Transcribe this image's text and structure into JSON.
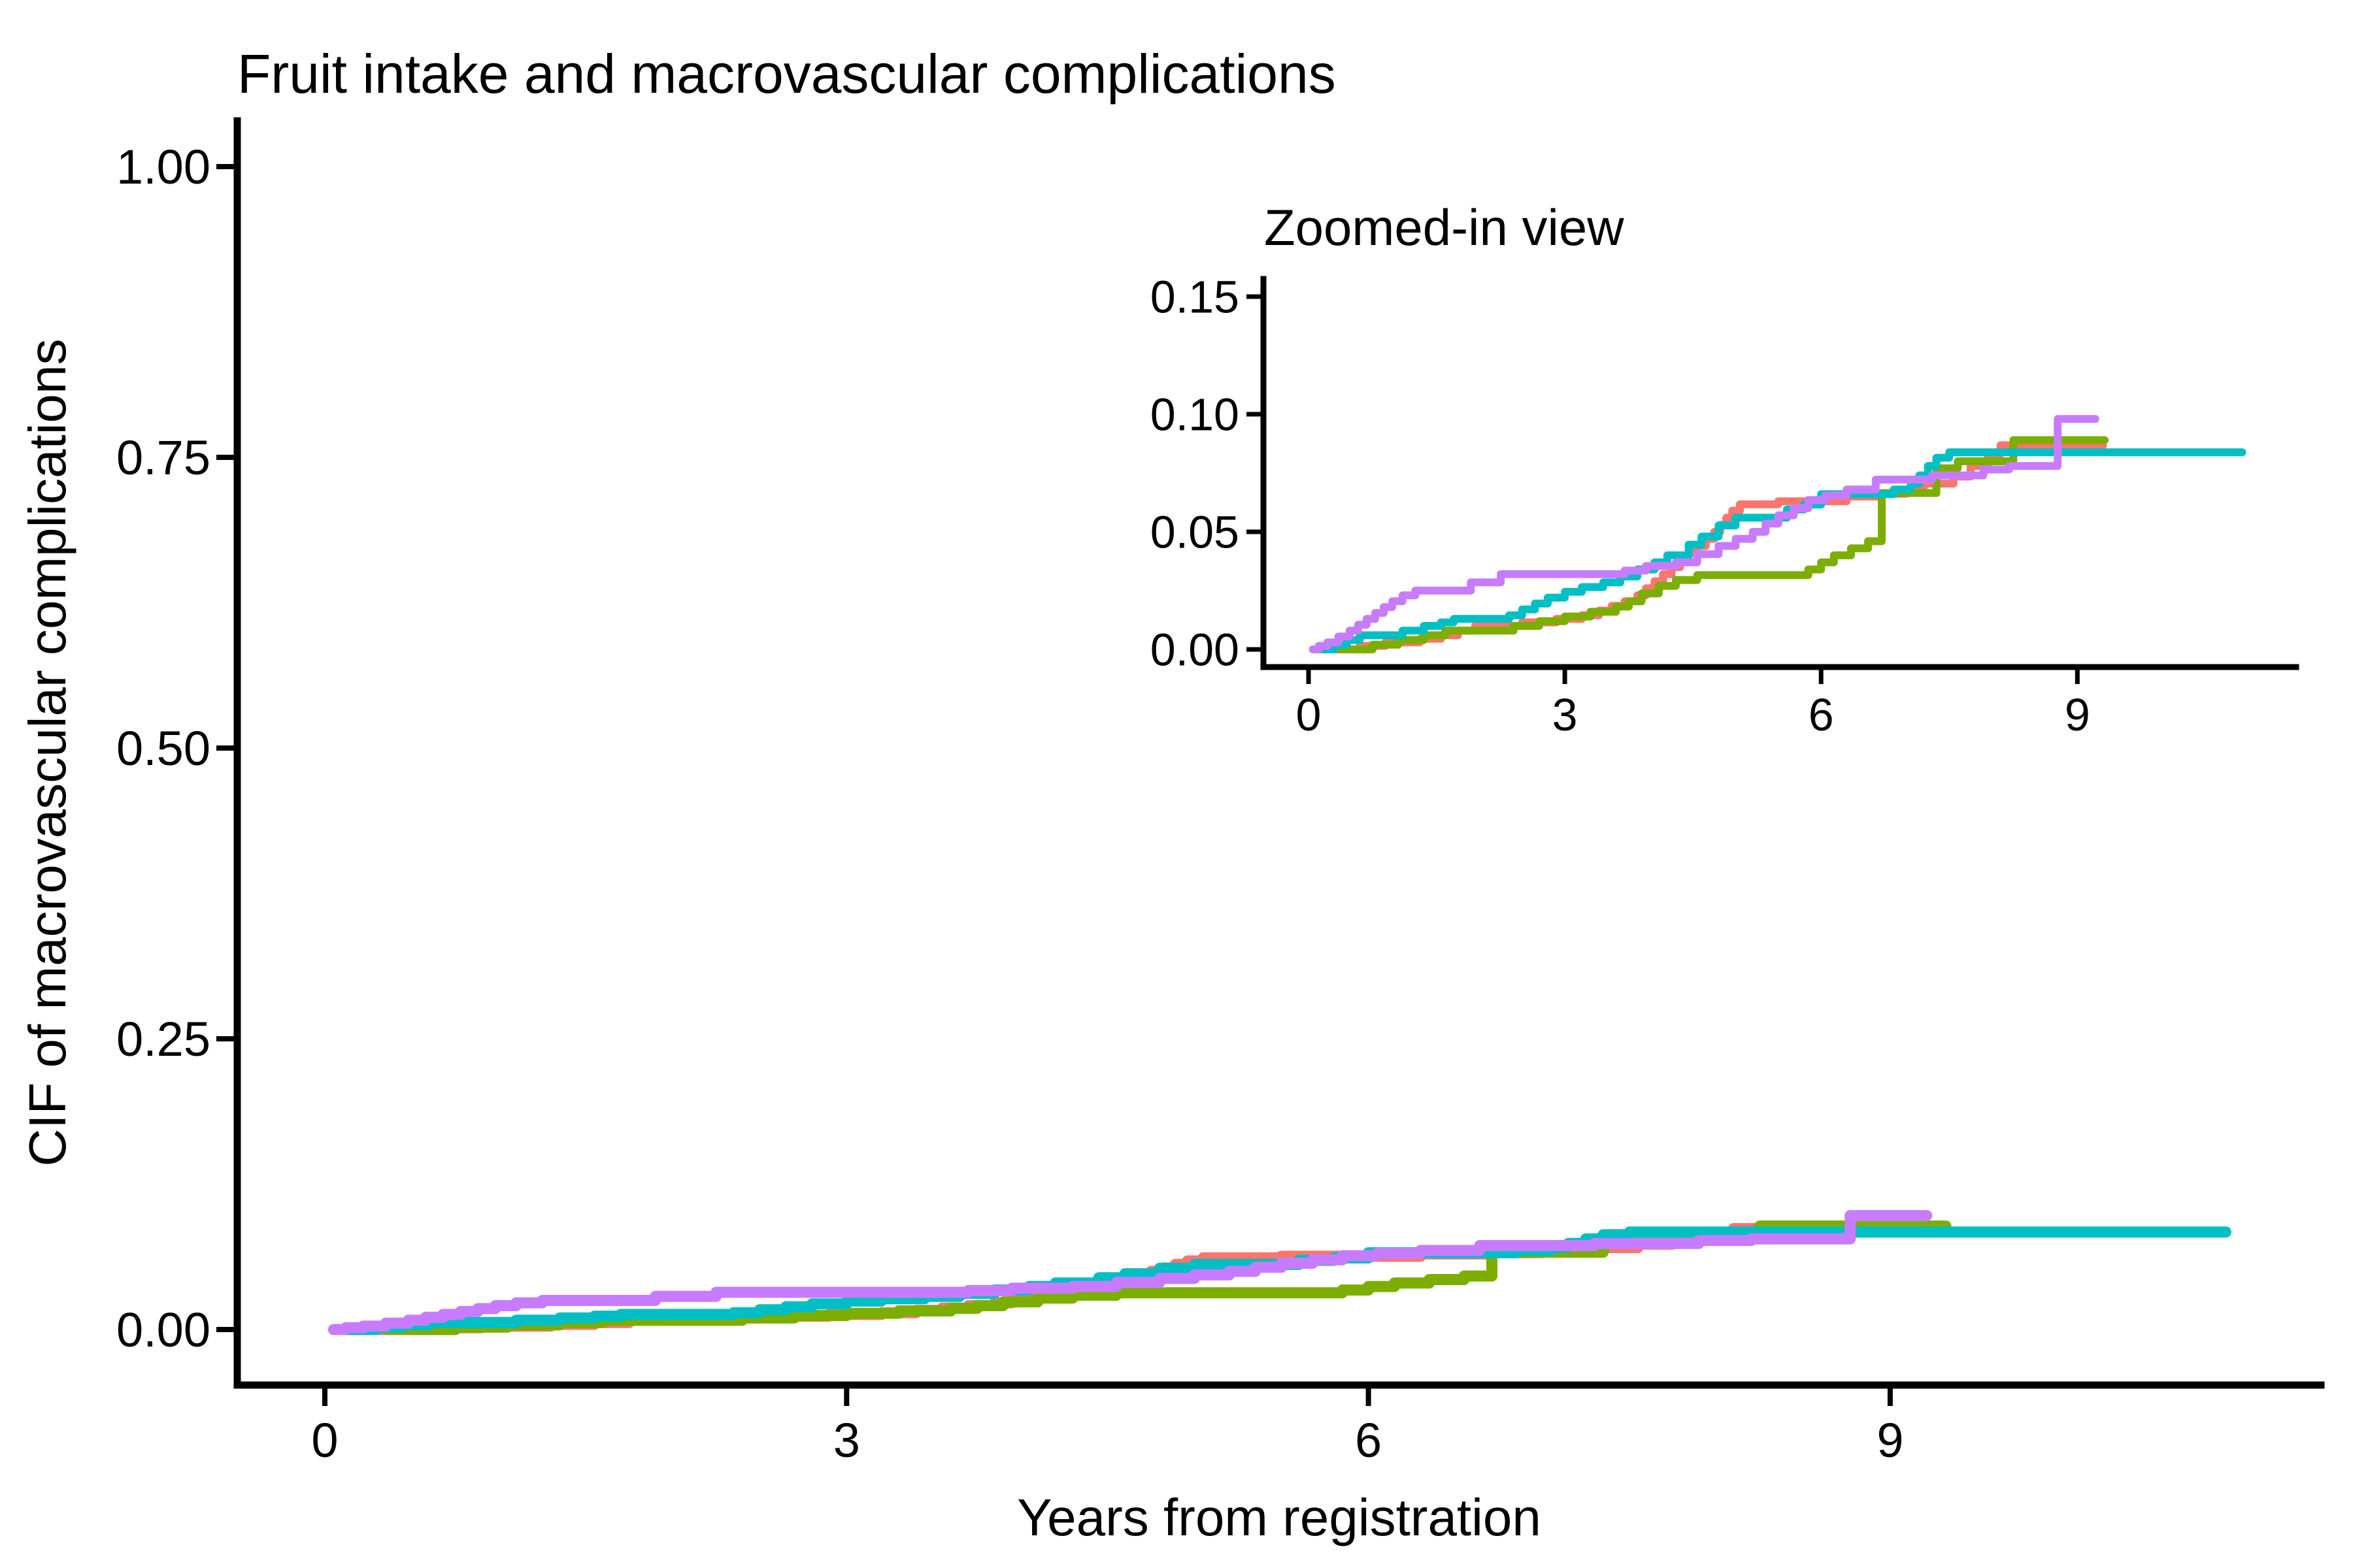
{
  "page": {
    "background_color": "#FFFFFF",
    "text_color": "#000000",
    "axis_color": "#000000"
  },
  "chart_data": [
    {
      "id": "main",
      "type": "line",
      "subtype": "step-cumulative-incidence",
      "title": "Fruit intake and macrovascular complications",
      "xlabel": "Years from registration",
      "ylabel": "CIF of macrovascular complications",
      "xlim": [
        0,
        11
      ],
      "ylim": [
        0,
        1
      ],
      "grid": false,
      "legend": "none",
      "xticks": [
        0,
        3,
        6,
        9
      ],
      "xtick_labels": [
        "0",
        "3",
        "6",
        "9"
      ],
      "yticks": [
        0,
        0.25,
        0.5,
        0.75,
        1
      ],
      "ytick_labels": [
        "0.00",
        "0.25",
        "0.50",
        "0.75",
        "1.00"
      ],
      "series": [
        {
          "name": "salmon",
          "color": "#F8766D",
          "points": [
            [
              0.25,
              0
            ],
            [
              0.6,
              0.0015
            ],
            [
              0.9,
              0.003
            ],
            [
              1.3,
              0.0045
            ],
            [
              1.55,
              0.006
            ],
            [
              1.75,
              0.008
            ],
            [
              1.95,
              0.01
            ],
            [
              2.5,
              0.0115
            ],
            [
              2.9,
              0.013
            ],
            [
              3.2,
              0.0145
            ],
            [
              3.4,
              0.0165
            ],
            [
              3.55,
              0.0185
            ],
            [
              3.7,
              0.0205
            ],
            [
              3.85,
              0.023
            ],
            [
              3.95,
              0.026
            ],
            [
              4.05,
              0.029
            ],
            [
              4.15,
              0.032
            ],
            [
              4.25,
              0.035
            ],
            [
              4.35,
              0.038
            ],
            [
              4.45,
              0.041
            ],
            [
              4.55,
              0.044
            ],
            [
              4.65,
              0.047
            ],
            [
              4.75,
              0.05
            ],
            [
              4.82,
              0.053
            ],
            [
              4.89,
              0.056
            ],
            [
              4.96,
              0.059
            ],
            [
              5.05,
              0.0617
            ],
            [
              5.5,
              0.063
            ],
            [
              6.3,
              0.065
            ],
            [
              6.7,
              0.0662
            ],
            [
              7.0,
              0.0675
            ],
            [
              7.2,
              0.0705
            ],
            [
              7.55,
              0.0735
            ],
            [
              7.75,
              0.078
            ],
            [
              7.95,
              0.083
            ],
            [
              8.1,
              0.0868
            ]
          ],
          "end_x": 9.3
        },
        {
          "name": "olive",
          "color": "#7CAE00",
          "points": [
            [
              0.35,
              0
            ],
            [
              0.75,
              0.002
            ],
            [
              1.05,
              0.004
            ],
            [
              1.35,
              0.006
            ],
            [
              1.6,
              0.008
            ],
            [
              2.4,
              0.01
            ],
            [
              2.7,
              0.012
            ],
            [
              3.0,
              0.014
            ],
            [
              3.3,
              0.016
            ],
            [
              3.6,
              0.0182
            ],
            [
              3.75,
              0.0205
            ],
            [
              3.9,
              0.0238
            ],
            [
              4.1,
              0.027
            ],
            [
              4.3,
              0.0295
            ],
            [
              4.55,
              0.0316
            ],
            [
              5.85,
              0.034
            ],
            [
              6.0,
              0.037
            ],
            [
              6.15,
              0.04
            ],
            [
              6.35,
              0.043
            ],
            [
              6.55,
              0.046
            ],
            [
              6.71,
              0.0665
            ],
            [
              7.35,
              0.077
            ],
            [
              7.6,
              0.08
            ],
            [
              8.25,
              0.089
            ]
          ],
          "end_x": 9.32
        },
        {
          "name": "teal",
          "color": "#00BFC4",
          "points": [
            [
              0.1,
              0
            ],
            [
              0.3,
              0.002
            ],
            [
              0.45,
              0.004
            ],
            [
              0.6,
              0.006
            ],
            [
              1.1,
              0.008
            ],
            [
              1.35,
              0.01
            ],
            [
              1.55,
              0.0115
            ],
            [
              1.7,
              0.013
            ],
            [
              2.35,
              0.0145
            ],
            [
              2.5,
              0.017
            ],
            [
              2.65,
              0.0195
            ],
            [
              2.8,
              0.022
            ],
            [
              3.0,
              0.0245
            ],
            [
              3.2,
              0.0265
            ],
            [
              3.45,
              0.0285
            ],
            [
              3.65,
              0.031
            ],
            [
              3.85,
              0.034
            ],
            [
              4.05,
              0.037
            ],
            [
              4.2,
              0.04
            ],
            [
              4.45,
              0.0445
            ],
            [
              4.6,
              0.048
            ],
            [
              4.8,
              0.0527
            ],
            [
              5.0,
              0.056
            ],
            [
              5.6,
              0.0595
            ],
            [
              5.8,
              0.0616
            ],
            [
              6.0,
              0.066
            ],
            [
              6.85,
              0.068
            ],
            [
              7.05,
              0.0705
            ],
            [
              7.15,
              0.074
            ],
            [
              7.25,
              0.078
            ],
            [
              7.35,
              0.0815
            ],
            [
              7.5,
              0.0838
            ]
          ],
          "end_x": 10.93
        },
        {
          "name": "purple",
          "color": "#C77CFF",
          "points": [
            [
              0.05,
              0
            ],
            [
              0.12,
              0.0015
            ],
            [
              0.22,
              0.003
            ],
            [
              0.35,
              0.0055
            ],
            [
              0.48,
              0.008
            ],
            [
              0.58,
              0.0105
            ],
            [
              0.68,
              0.013
            ],
            [
              0.78,
              0.0155
            ],
            [
              0.88,
              0.018
            ],
            [
              0.98,
              0.0205
            ],
            [
              1.1,
              0.023
            ],
            [
              1.25,
              0.025
            ],
            [
              1.9,
              0.0285
            ],
            [
              2.25,
              0.032
            ],
            [
              3.7,
              0.0335
            ],
            [
              3.95,
              0.0355
            ],
            [
              4.3,
              0.037
            ],
            [
              4.55,
              0.0405
            ],
            [
              4.8,
              0.044
            ],
            [
              5.0,
              0.047
            ],
            [
              5.2,
              0.05
            ],
            [
              5.35,
              0.0535
            ],
            [
              5.5,
              0.057
            ],
            [
              5.68,
              0.06
            ],
            [
              5.85,
              0.0635
            ],
            [
              6.05,
              0.0655
            ],
            [
              6.3,
              0.068
            ],
            [
              6.64,
              0.0722
            ],
            [
              7.3,
              0.074
            ],
            [
              7.9,
              0.0765
            ],
            [
              8.2,
              0.078
            ],
            [
              8.77,
              0.098
            ]
          ],
          "end_x": 9.21
        }
      ]
    },
    {
      "id": "inset",
      "type": "line",
      "subtype": "step-cumulative-incidence",
      "title": "Zoomed-in view",
      "xlabel": "",
      "ylabel": "",
      "xlim": [
        0,
        11
      ],
      "ylim": [
        0,
        0.15
      ],
      "grid": false,
      "legend": "none",
      "xticks": [
        0,
        3,
        6,
        9
      ],
      "xtick_labels": [
        "0",
        "3",
        "6",
        "9"
      ],
      "yticks": [
        0,
        0.05,
        0.1,
        0.15
      ],
      "ytick_labels": [
        "0.00",
        "0.05",
        "0.10",
        "0.15"
      ],
      "series_source": "same series as main chart"
    }
  ]
}
